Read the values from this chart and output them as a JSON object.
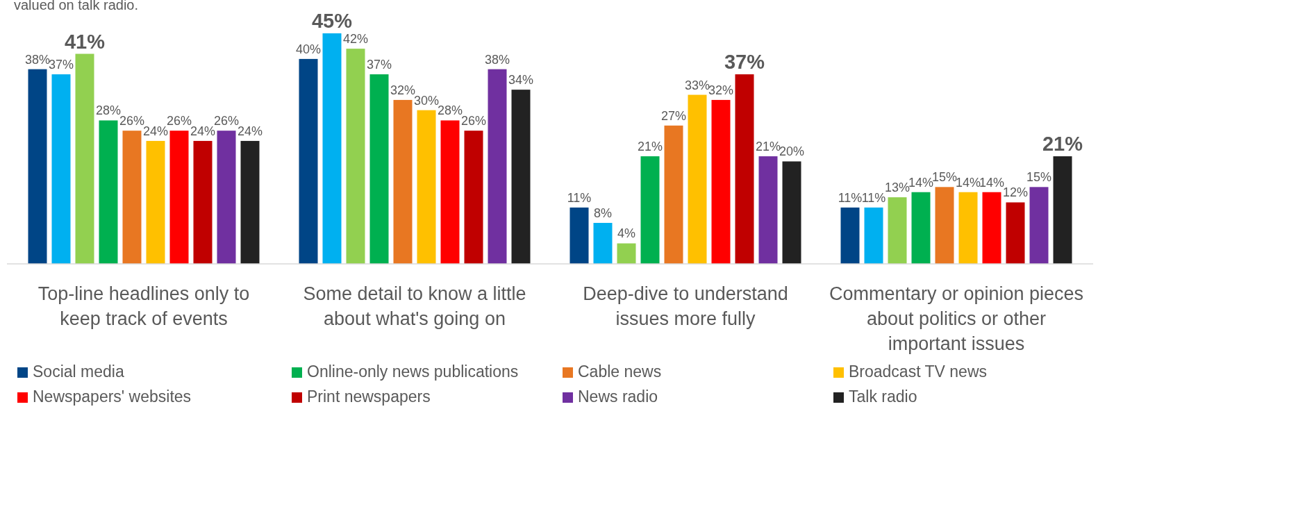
{
  "chart_data": {
    "type": "bar",
    "annotations": [
      "valued on talk radio."
    ],
    "categories": [
      "Top-line headlines only to keep track of events",
      "Some detail to know a little about what's going on",
      "Deep-dive to understand issues more fully",
      "Commentary or opinion pieces about politics or other important issues"
    ],
    "series": [
      {
        "name": "Social media",
        "color": "#004586",
        "values": [
          38,
          40,
          11,
          11
        ],
        "value_labels": [
          "38%",
          "40%",
          "11%",
          "11%"
        ]
      },
      {
        "color": "#00b0f0",
        "values": [
          37,
          45,
          8,
          11
        ],
        "value_labels": [
          "37%",
          "45%",
          "8%",
          "11%"
        ]
      },
      {
        "color": "#92d050",
        "values": [
          41,
          42,
          4,
          13
        ],
        "value_labels": [
          "41%",
          "42%",
          "4%",
          "13%"
        ]
      },
      {
        "name": "Online-only news publications",
        "color": "#00b050",
        "values": [
          28,
          37,
          21,
          14
        ],
        "value_labels": [
          "28%",
          "37%",
          "21%",
          "14%"
        ]
      },
      {
        "name": "Cable news",
        "color": "#e87722",
        "values": [
          26,
          32,
          27,
          15
        ],
        "value_labels": [
          "26%",
          "32%",
          "27%",
          "15%"
        ]
      },
      {
        "name": "Broadcast TV news",
        "color": "#ffc000",
        "values": [
          24,
          30,
          33,
          14
        ],
        "value_labels": [
          "24%",
          "30%",
          "33%",
          "14%"
        ]
      },
      {
        "name": "Newspapers' websites",
        "color": "#ff0000",
        "values": [
          26,
          28,
          32,
          14
        ],
        "value_labels": [
          "26%",
          "28%",
          "32%",
          "14%"
        ]
      },
      {
        "name": "Print newspapers",
        "color": "#c00000",
        "values": [
          24,
          26,
          37,
          12
        ],
        "value_labels": [
          "24%",
          "26%",
          "37%",
          "12%"
        ]
      },
      {
        "name": "News radio",
        "color": "#7030a0",
        "values": [
          26,
          38,
          21,
          15
        ],
        "value_labels": [
          "26%",
          "38%",
          "21%",
          "15%"
        ]
      },
      {
        "name": "Talk radio",
        "color": "#222222",
        "values": [
          24,
          34,
          20,
          21
        ],
        "value_labels": [
          "24%",
          "34%",
          "20%",
          "21%"
        ]
      }
    ],
    "legend": "bottom"
  }
}
